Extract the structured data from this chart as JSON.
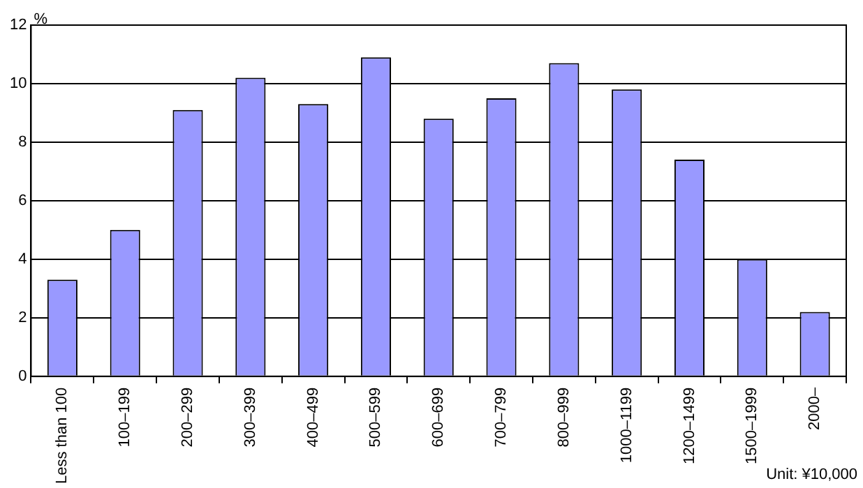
{
  "chart_data": {
    "type": "bar",
    "ylabel": "%",
    "annotations": [
      "Unit: ¥10,000"
    ],
    "categories": [
      "Less than 100",
      "100–199",
      "200–299",
      "300–399",
      "400–499",
      "500–599",
      "600–699",
      "700–799",
      "800–999",
      "1000–1199",
      "1200–1499",
      "1500–1999",
      "2000–"
    ],
    "values": [
      3.3,
      5.0,
      9.1,
      10.2,
      9.3,
      10.9,
      8.8,
      9.5,
      10.7,
      9.8,
      7.4,
      4.0,
      2.2
    ],
    "color": "#9999ff",
    "ylim": [
      0,
      12
    ],
    "yticks": [
      0,
      2,
      4,
      6,
      8,
      10,
      12
    ],
    "grid": "y",
    "legend": false
  }
}
